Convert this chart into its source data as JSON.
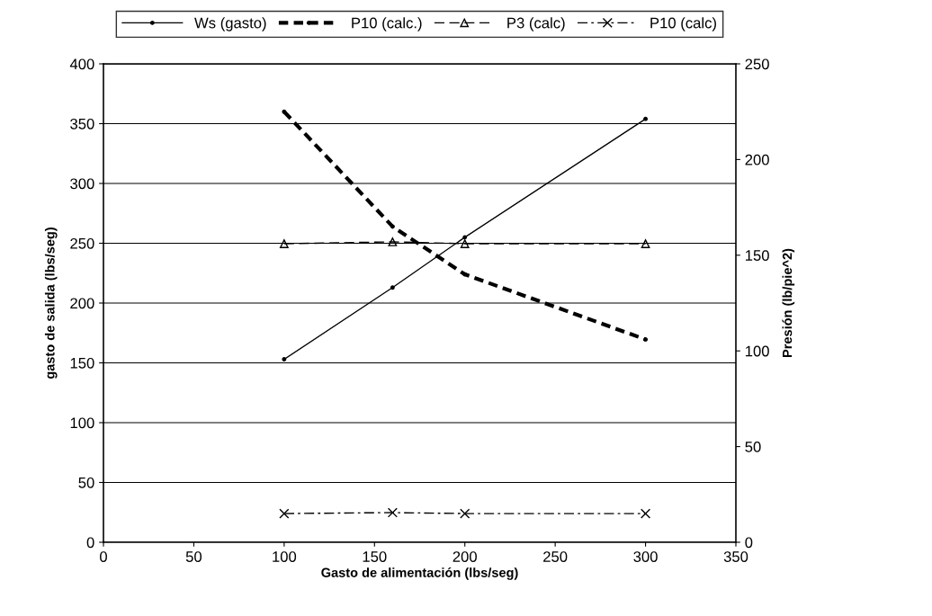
{
  "chart_data": {
    "type": "line",
    "xlabel": "Gasto de alimentación (lbs/seg)",
    "ylabel": "gasto de salida (lbs/seg)",
    "y2label": "Presión (lb/pie^2)",
    "x": [
      100,
      160,
      200,
      300
    ],
    "series": [
      {
        "name": "Ws (gasto)",
        "color": "#000000",
        "values": [
          153,
          213,
          255,
          354
        ],
        "line_style": "solid",
        "marker": "circle"
      },
      {
        "name": "P10 (calc.)",
        "color": "#000000",
        "values": [
          225,
          165,
          140,
          106
        ],
        "line_style": "dotted",
        "marker": "circle",
        "axis": "y2"
      },
      {
        "name": "P3 (calc)",
        "color": "#000000",
        "values": [
          156,
          157,
          156,
          156
        ],
        "line_style": "dashed",
        "marker": "triangle",
        "axis": "y2"
      },
      {
        "name": "P10 (calc)",
        "color": "#000000",
        "values": [
          15,
          15.5,
          15,
          15
        ],
        "line_style": "dashdot",
        "marker": "cross",
        "axis": "y2"
      }
    ],
    "xlim": [
      0,
      350
    ],
    "xticks": [
      0,
      50,
      100,
      150,
      200,
      250,
      300,
      350
    ],
    "ylim": [
      0,
      400
    ],
    "yticks": [
      0,
      50,
      100,
      150,
      200,
      250,
      300,
      350,
      400
    ],
    "y2lim": [
      0,
      250
    ],
    "y2ticks": [
      0,
      50,
      100,
      150,
      200,
      250
    ],
    "grid": "y",
    "legend": "top"
  }
}
